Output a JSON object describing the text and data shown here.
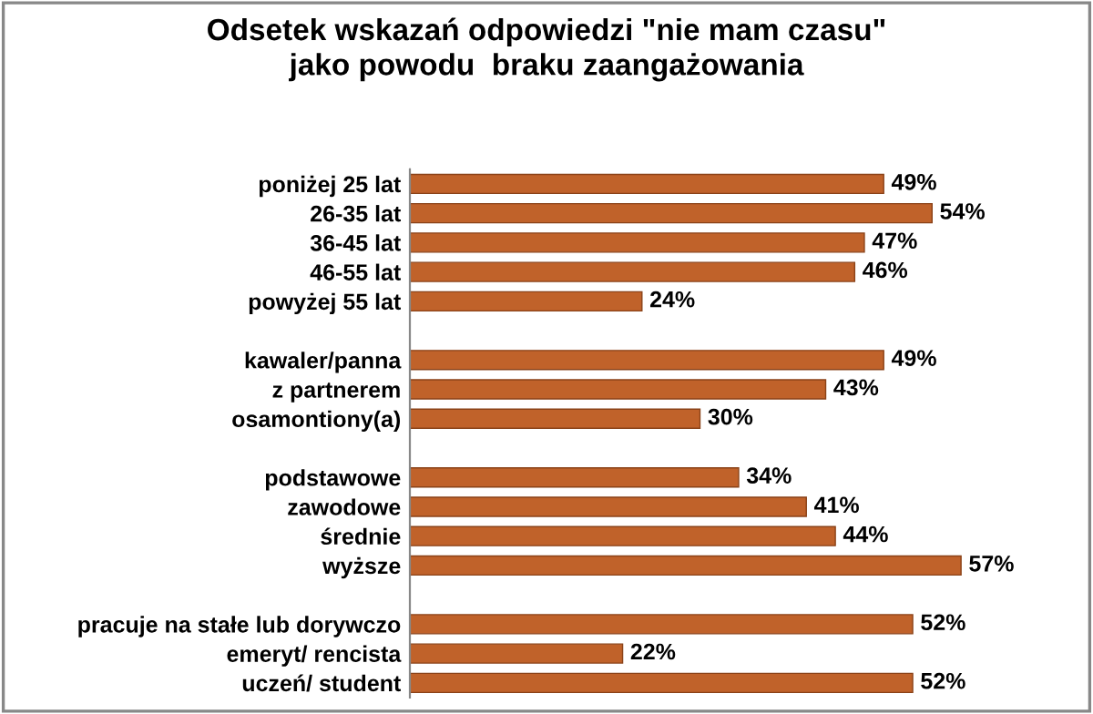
{
  "chart_data": {
    "type": "bar",
    "orientation": "horizontal",
    "title": "Odsetek wskazań odpowiedzi \"nie mam czasu\"\njako powodu  braku zaangażowania",
    "categories": [
      "poniżej 25 lat",
      "26-35 lat",
      "36-45 lat",
      "46-55 lat",
      "powyżej 55 lat",
      null,
      "kawaler/panna",
      "z partnerem",
      "osamontiony(a)",
      null,
      "podstawowe",
      "zawodowe",
      "średnie",
      "wyższe",
      null,
      "pracuje na stałe lub dorywczo",
      "emeryt/ rencista",
      "uczeń/ student"
    ],
    "values": [
      49,
      54,
      47,
      46,
      24,
      null,
      49,
      43,
      30,
      null,
      34,
      41,
      44,
      57,
      null,
      52,
      22,
      52
    ],
    "value_labels": [
      "49%",
      "54%",
      "47%",
      "46%",
      "24%",
      null,
      "49%",
      "43%",
      "30%",
      null,
      "34%",
      "41%",
      "44%",
      "57%",
      null,
      "52%",
      "22%",
      "52%"
    ],
    "color": "#c0622a"
  }
}
